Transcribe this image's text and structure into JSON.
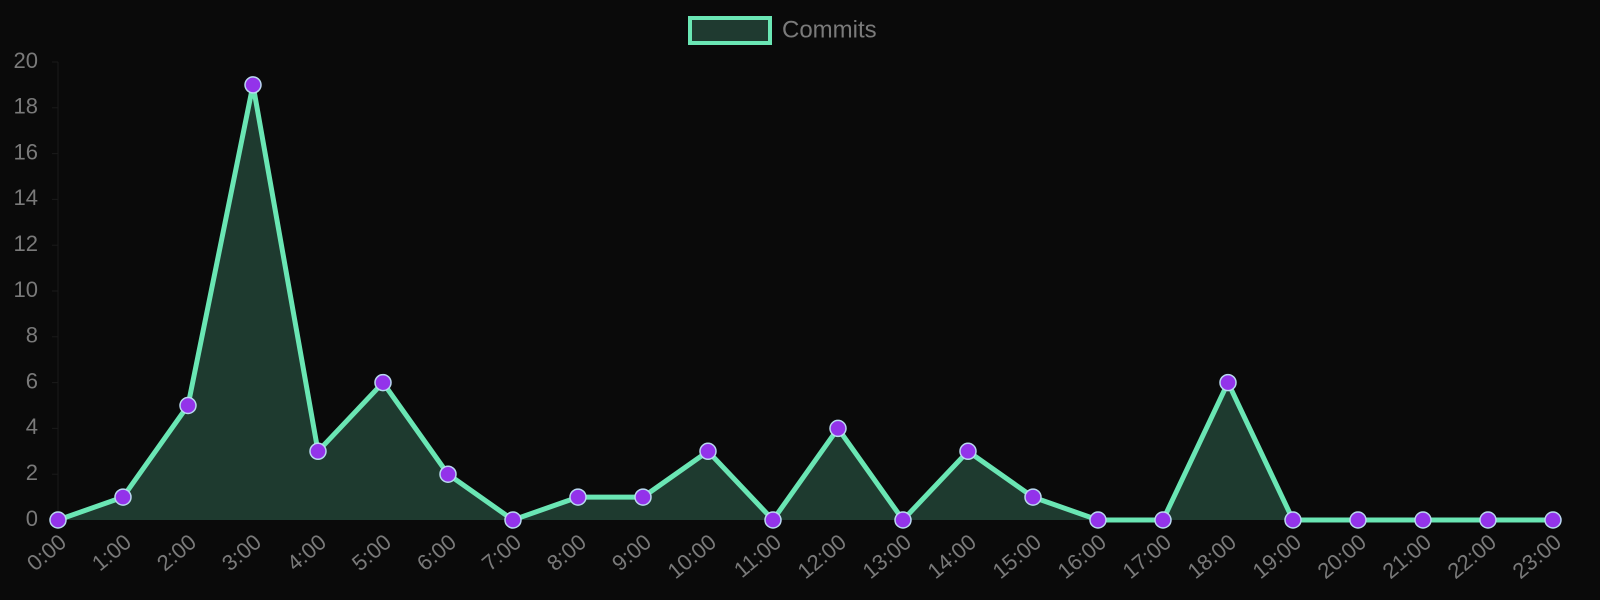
{
  "chart_data": {
    "type": "line",
    "categories": [
      "0:00",
      "1:00",
      "2:00",
      "3:00",
      "4:00",
      "5:00",
      "6:00",
      "7:00",
      "8:00",
      "9:00",
      "10:00",
      "11:00",
      "12:00",
      "13:00",
      "14:00",
      "15:00",
      "16:00",
      "17:00",
      "18:00",
      "19:00",
      "20:00",
      "21:00",
      "22:00",
      "23:00"
    ],
    "series": [
      {
        "name": "Commits",
        "color": "#6ae6b4",
        "point_color": "#9333ea",
        "fill": true,
        "values": [
          0,
          1,
          5,
          19,
          3,
          6,
          2,
          0,
          1,
          1,
          3,
          0,
          4,
          0,
          3,
          1,
          0,
          0,
          6,
          0,
          0,
          0,
          0,
          0
        ]
      }
    ],
    "ylim": [
      0,
      20
    ],
    "yticks": [
      0,
      2,
      4,
      6,
      8,
      10,
      12,
      14,
      16,
      18,
      20
    ],
    "legend": "top"
  }
}
